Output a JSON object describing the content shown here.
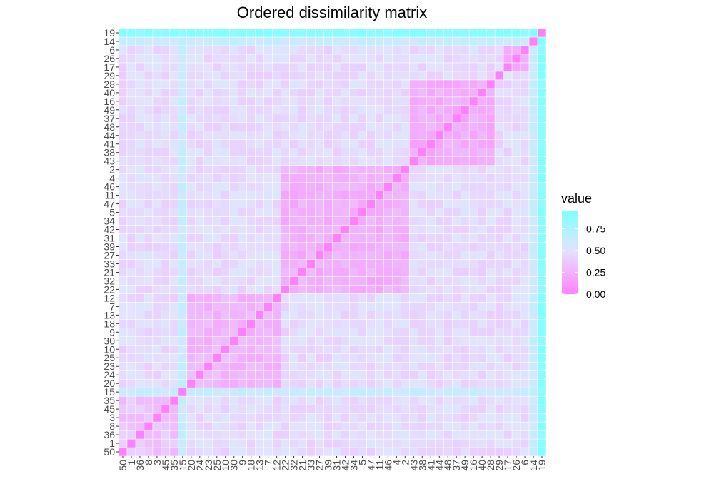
{
  "chart_data": {
    "type": "heatmap",
    "title": "Ordered dissimilarity matrix",
    "xlabel": "",
    "ylabel": "",
    "order": [
      50,
      1,
      36,
      8,
      3,
      45,
      35,
      15,
      20,
      24,
      23,
      25,
      10,
      30,
      9,
      18,
      13,
      7,
      12,
      22,
      32,
      21,
      33,
      27,
      39,
      31,
      42,
      34,
      5,
      47,
      11,
      46,
      4,
      2,
      43,
      38,
      41,
      44,
      48,
      37,
      49,
      16,
      40,
      28,
      29,
      17,
      26,
      6,
      14,
      19
    ],
    "color_scale": {
      "low": "#ff80ff",
      "mid": "#e3e3ff",
      "high": "#80ffff",
      "domain": [
        0,
        0.5,
        0.95
      ]
    },
    "legend": {
      "title": "value",
      "position": "right",
      "breaks": [
        0.75,
        0.5,
        0.25,
        0.0
      ],
      "labels": [
        "0.75",
        "0.50",
        "0.25",
        "0.00"
      ]
    },
    "grid": true,
    "cluster_blocks": [
      {
        "from_index": 7,
        "to_index": 18,
        "level": 0.27
      },
      {
        "from_index": 19,
        "to_index": 33,
        "level": 0.24
      },
      {
        "from_index": 34,
        "to_index": 43,
        "level": 0.23
      },
      {
        "from_index": 45,
        "to_index": 47,
        "level": 0.24
      },
      {
        "from_index": 0,
        "to_index": 6,
        "level": 0.35
      }
    ],
    "outliers": [
      {
        "item": 19,
        "typical_value": 0.92
      },
      {
        "item": 14,
        "typical_value": 0.62
      },
      {
        "item": 15,
        "typical_value": 0.62
      }
    ]
  },
  "colors": {
    "background": "#ffffff",
    "tile_border": "#ffffff",
    "tick_text": "#4d4d4d",
    "tick_mark": "#333333"
  }
}
